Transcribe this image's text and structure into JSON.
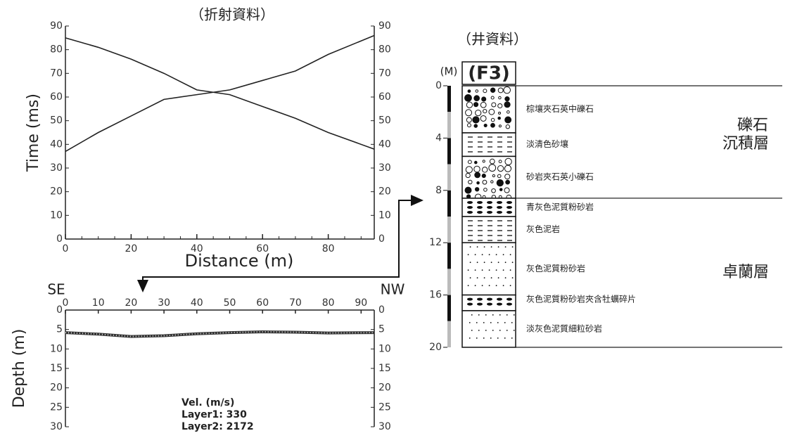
{
  "chart_data": [
    {
      "type": "line",
      "title": "（折射資料）",
      "x_label": "Distance (m)",
      "y_label": "Time (ms)",
      "x": [
        0,
        10,
        20,
        30,
        40,
        50,
        60,
        70,
        80,
        94
      ],
      "series": [
        {
          "color": "#222222",
          "values": [
            85,
            81,
            76,
            70,
            63,
            61,
            56,
            51,
            45,
            38
          ]
        },
        {
          "color": "#222222",
          "values": [
            37,
            45,
            52,
            59,
            61,
            63,
            67,
            71,
            78,
            86
          ]
        }
      ],
      "xlim": [
        0,
        94
      ],
      "xticks": [
        0,
        20,
        40,
        60,
        80
      ],
      "ylim": [
        0,
        90
      ],
      "yticks": [
        0,
        10,
        20,
        30,
        40,
        50,
        60,
        70,
        80,
        90
      ],
      "y2lim": [
        0,
        90
      ],
      "y2ticks": [
        0,
        10,
        20,
        30,
        40,
        50,
        60,
        70,
        80,
        90
      ]
    },
    {
      "type": "line",
      "left_label": "SE",
      "right_label": "NW",
      "y_label": "Depth (m)",
      "x": [
        0,
        10,
        20,
        30,
        40,
        50,
        60,
        70,
        80,
        94
      ],
      "series": [
        {
          "color": "#333333",
          "values": [
            5.8,
            6.2,
            6.8,
            6.6,
            6.1,
            5.8,
            5.6,
            5.7,
            5.9,
            5.8
          ]
        }
      ],
      "xlim": [
        0,
        94
      ],
      "xticks": [
        0,
        10,
        20,
        30,
        40,
        50,
        60,
        70,
        80,
        90
      ],
      "ylim": [
        30,
        0
      ],
      "yticks": [
        0,
        5,
        10,
        15,
        20,
        25,
        30
      ],
      "y2lim": [
        30,
        0
      ],
      "y2ticks": [
        0,
        5,
        10,
        15,
        20,
        25,
        30
      ],
      "annotations": [
        "Vel. (m/s)",
        "Layer1: 330",
        "Layer2: 2172"
      ]
    }
  ],
  "well_log": {
    "title": "（井資料）",
    "unit": "(M)",
    "well_name": "(F3)",
    "depth_lim": [
      0,
      20
    ],
    "depth_ticks": [
      0,
      4,
      8,
      12,
      16,
      20
    ],
    "layers": [
      {
        "top": 0,
        "bottom": 3.6,
        "description": "棕壤夾石英中礫石"
      },
      {
        "top": 3.6,
        "bottom": 5.4,
        "description": "淡清色砂壤"
      },
      {
        "top": 5.4,
        "bottom": 8.6,
        "description": "砂岩夾石英小礫石"
      },
      {
        "top": 8.6,
        "bottom": 10.0,
        "description": "青灰色泥質粉砂岩"
      },
      {
        "top": 10.0,
        "bottom": 12.0,
        "description": "灰色泥岩"
      },
      {
        "top": 12.0,
        "bottom": 16.0,
        "description": "灰色泥質粉砂岩"
      },
      {
        "top": 16.0,
        "bottom": 17.2,
        "description": "灰色泥質粉砂岩夾含牡蠣碎片"
      },
      {
        "top": 17.2,
        "bottom": 20,
        "description": "淡灰色泥質細粒砂岩"
      }
    ],
    "formations": [
      {
        "top": 0,
        "bottom": 8.6,
        "name_lines": [
          "礫石",
          "沉積層"
        ]
      },
      {
        "top": 8.6,
        "bottom": 20,
        "name_lines": [
          "卓蘭層"
        ]
      }
    ]
  }
}
